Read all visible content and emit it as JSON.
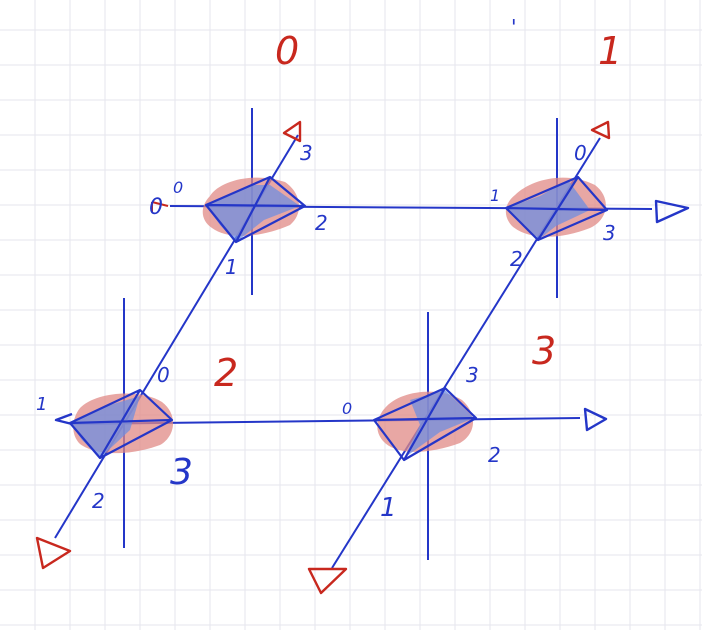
{
  "colors": {
    "ink_blue": "#2436c8",
    "ink_red": "#c8281e",
    "fill_blue": "#6f8ee0",
    "fill_red": "#e08a86",
    "grid": "#e6e6ee"
  },
  "labels": {
    "big": {
      "zero": "0",
      "one": "1",
      "two": "2",
      "three": "3"
    },
    "tl": {
      "top": "3",
      "left": "0",
      "right": "2",
      "bottom": "1",
      "far_left": "0"
    },
    "tr": {
      "top": "0",
      "left": "1",
      "right": "3",
      "bottom": "2"
    },
    "bl": {
      "top": "0",
      "left": "1",
      "right": "3",
      "bottom": "2"
    },
    "br": {
      "top": "3",
      "left": "0",
      "right": "2",
      "bottom": "1"
    },
    "tick": "'"
  }
}
